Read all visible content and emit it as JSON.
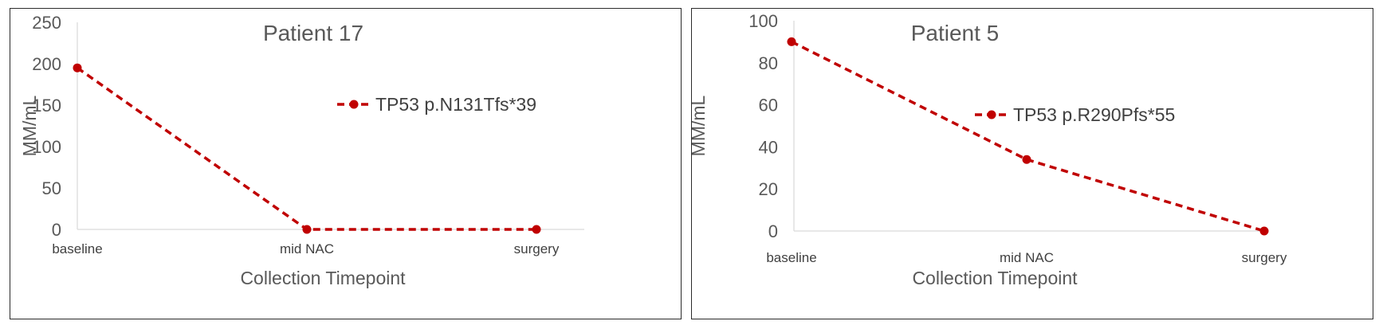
{
  "chart_data": [
    {
      "type": "line",
      "title": "Patient 17",
      "xlabel": "Collection Timepoint",
      "ylabel": "MM/mL",
      "categories": [
        "baseline",
        "mid NAC",
        "surgery"
      ],
      "ylim": [
        0,
        250
      ],
      "yticks": [
        0,
        50,
        100,
        150,
        200,
        250
      ],
      "grid": false,
      "legend_position": "right",
      "series": [
        {
          "name": "TP53 p.N131Tfs*39",
          "values": [
            195,
            0,
            0
          ],
          "color": "#c00000",
          "style": "dashed"
        }
      ]
    },
    {
      "type": "line",
      "title": "Patient 5",
      "xlabel": "Collection Timepoint",
      "ylabel": "MM/mL",
      "categories": [
        "baseline",
        "mid NAC",
        "surgery"
      ],
      "ylim": [
        0,
        100
      ],
      "yticks": [
        0,
        20,
        40,
        60,
        80,
        100
      ],
      "grid": false,
      "legend_position": "right",
      "series": [
        {
          "name": "TP53 p.R290Pfs*55",
          "values": [
            90,
            34,
            0
          ],
          "color": "#c00000",
          "style": "dashed"
        }
      ]
    }
  ]
}
